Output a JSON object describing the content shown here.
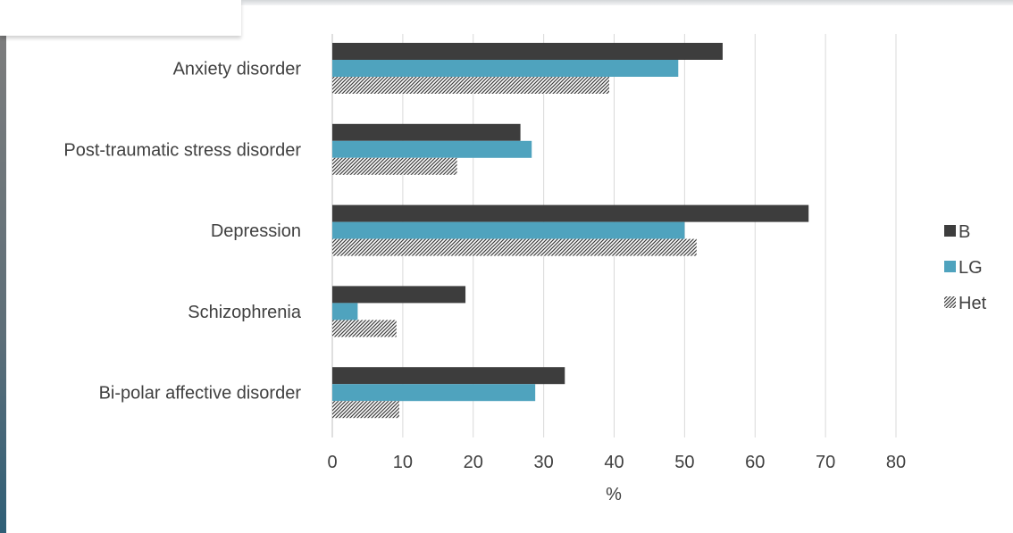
{
  "chart_data": {
    "type": "bar",
    "orientation": "horizontal",
    "categories": [
      "Anxiety disorder",
      "Post-traumatic stress disorder",
      "Depression",
      "Schizophrenia",
      "Bi-polar affective disorder"
    ],
    "series": [
      {
        "name": "B",
        "color": "#3d3d3d",
        "pattern": "solid",
        "values": [
          55.4,
          26.7,
          67.6,
          18.9,
          33.0
        ]
      },
      {
        "name": "LG",
        "color": "#4fa3be",
        "pattern": "solid",
        "values": [
          49.1,
          28.3,
          50.0,
          3.6,
          28.8
        ]
      },
      {
        "name": "Het",
        "color": "#3d3d3d",
        "pattern": "diagonal-hatch",
        "values": [
          39.3,
          17.7,
          51.7,
          9.1,
          9.5
        ]
      }
    ],
    "xlabel": "%",
    "ylabel": "",
    "xlim": [
      0,
      80
    ],
    "xticks": [
      "0",
      "10",
      "20",
      "30",
      "40",
      "50",
      "60",
      "70",
      "80"
    ],
    "grid": true,
    "legend_position": "right"
  }
}
